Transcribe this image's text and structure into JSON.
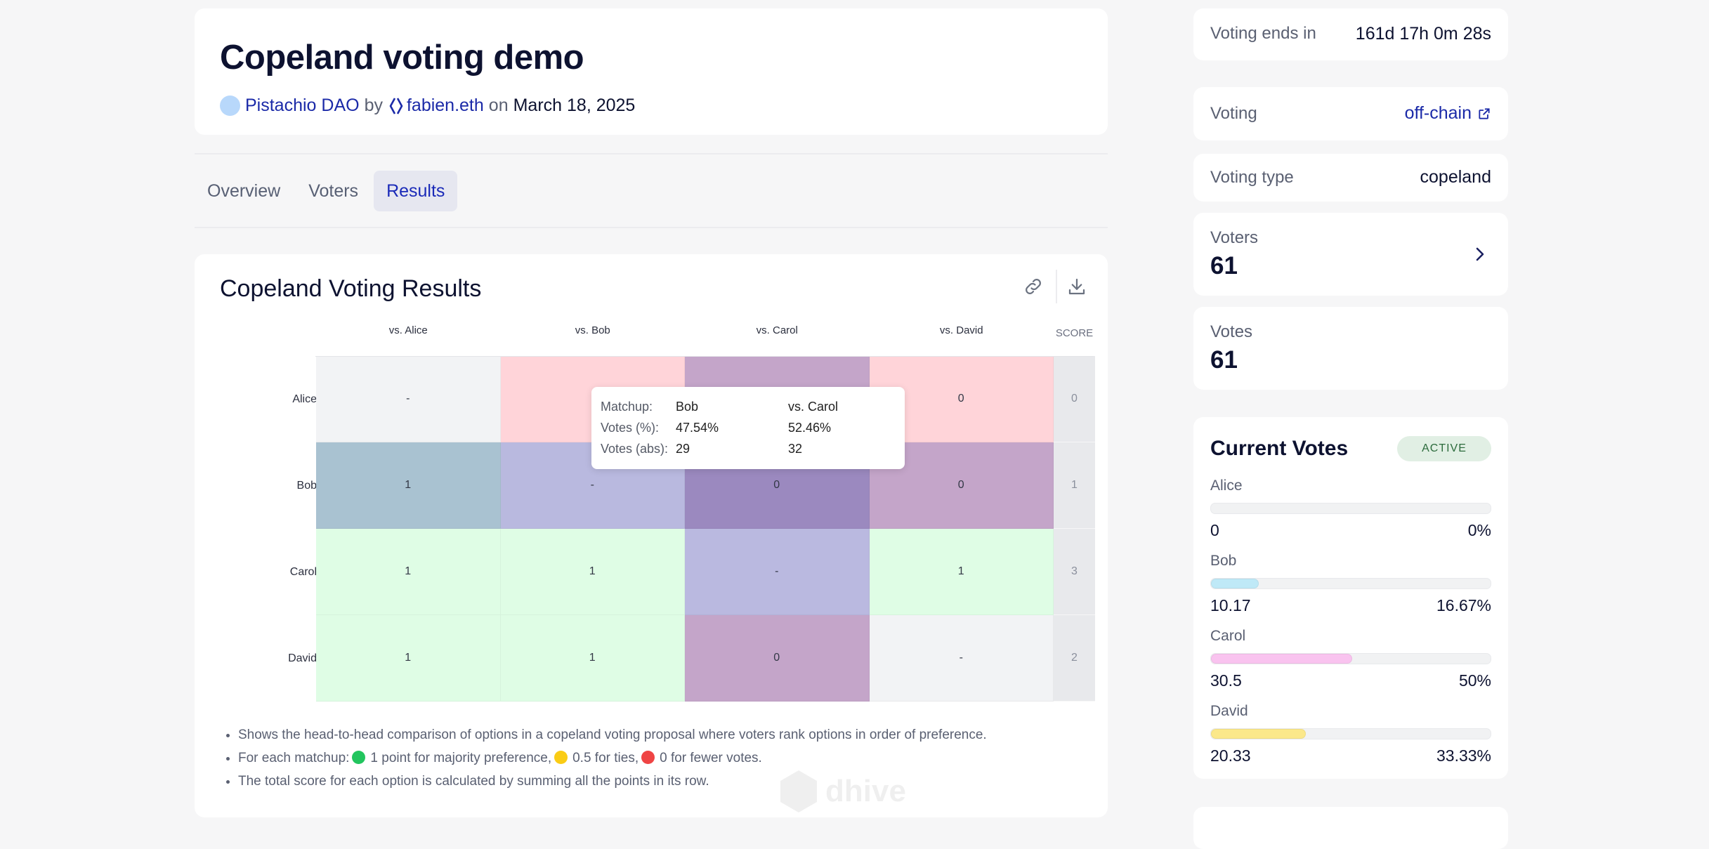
{
  "header": {
    "title": "Copeland voting demo",
    "dao_name": "Pistachio DAO",
    "by_word": "by",
    "author": "fabien.eth",
    "on_word": "on",
    "date": "March 18, 2025"
  },
  "tabs": [
    {
      "label": "Overview",
      "active": false
    },
    {
      "label": "Voters",
      "active": false
    },
    {
      "label": "Results",
      "active": true
    }
  ],
  "results": {
    "title": "Copeland Voting Results",
    "copy_link_icon": "link-icon",
    "download_icon": "download-icon",
    "watermark": "dhive",
    "matrix": {
      "columns": [
        "vs. Alice",
        "vs. Bob",
        "vs. Carol",
        "vs. David"
      ],
      "score_label": "SCORE",
      "rows": [
        {
          "name": "Alice",
          "cells": [
            "-",
            "",
            "",
            "0"
          ],
          "score": "0"
        },
        {
          "name": "Bob",
          "cells": [
            "1",
            "-",
            "0",
            "0"
          ],
          "score": "1"
        },
        {
          "name": "Carol",
          "cells": [
            "1",
            "1",
            "-",
            "1"
          ],
          "score": "3"
        },
        {
          "name": "David",
          "cells": [
            "1",
            "1",
            "0",
            "-"
          ],
          "score": "2"
        }
      ],
      "cell_colors": [
        [
          "#f2f3f5",
          "#ffd4d9",
          "#c4a5c9",
          "#ffd4d9"
        ],
        [
          "#a9c2d1",
          "#b9b9df",
          "#9b89bf",
          "#c4a5c9"
        ],
        [
          "#dffde5",
          "#dffde5",
          "#bab9e0",
          "#dffde5"
        ],
        [
          "#dffde5",
          "#dffde5",
          "#c4a5c9",
          "#f2f3f5"
        ]
      ],
      "score_bg": "#e8e9ec"
    },
    "tooltip": {
      "matchup_label": "Matchup:",
      "matchup_a": "Bob",
      "matchup_b": "vs. Carol",
      "pct_label": "Votes (%):",
      "pct_a": "47.54%",
      "pct_b": "52.46%",
      "abs_label": "Votes (abs):",
      "abs_a": "29",
      "abs_b": "32"
    },
    "notes": {
      "line1": "Shows the head-to-head comparison of options in a copeland voting proposal where voters rank options in order of preference.",
      "line2_prefix": "For each matchup:",
      "line2_win": "1 point for majority preference,",
      "line2_tie": "0.5 for ties,",
      "line2_loss": "0 for fewer votes.",
      "line3": "The total score for each option is calculated by summing all the points in its row.",
      "win_color": "#22c55e",
      "tie_color": "#facc15",
      "loss_color": "#ef4444"
    }
  },
  "sidebar": {
    "voting_ends_label": "Voting ends in",
    "voting_ends_value": "161d 17h 0m 28s",
    "voting_label": "Voting",
    "voting_value": "off-chain",
    "voting_type_label": "Voting type",
    "voting_type_value": "copeland",
    "voters_label": "Voters",
    "voters_value": "61",
    "votes_label": "Votes",
    "votes_value": "61"
  },
  "current_votes": {
    "title": "Current Votes",
    "status": "ACTIVE",
    "items": [
      {
        "name": "Alice",
        "value": "0",
        "percent": "0%",
        "fraction": 0,
        "color": "#e5e7eb"
      },
      {
        "name": "Bob",
        "value": "10.17",
        "percent": "16.67%",
        "fraction": 0.1667,
        "color": "#bfe9f7"
      },
      {
        "name": "Carol",
        "value": "30.5",
        "percent": "50%",
        "fraction": 0.5,
        "color": "#f9c3ef"
      },
      {
        "name": "David",
        "value": "20.33",
        "percent": "33.33%",
        "fraction": 0.3333,
        "color": "#fbe88a"
      }
    ]
  },
  "colors": {
    "accent": "#1a2ab8",
    "title": "#0d1230"
  }
}
